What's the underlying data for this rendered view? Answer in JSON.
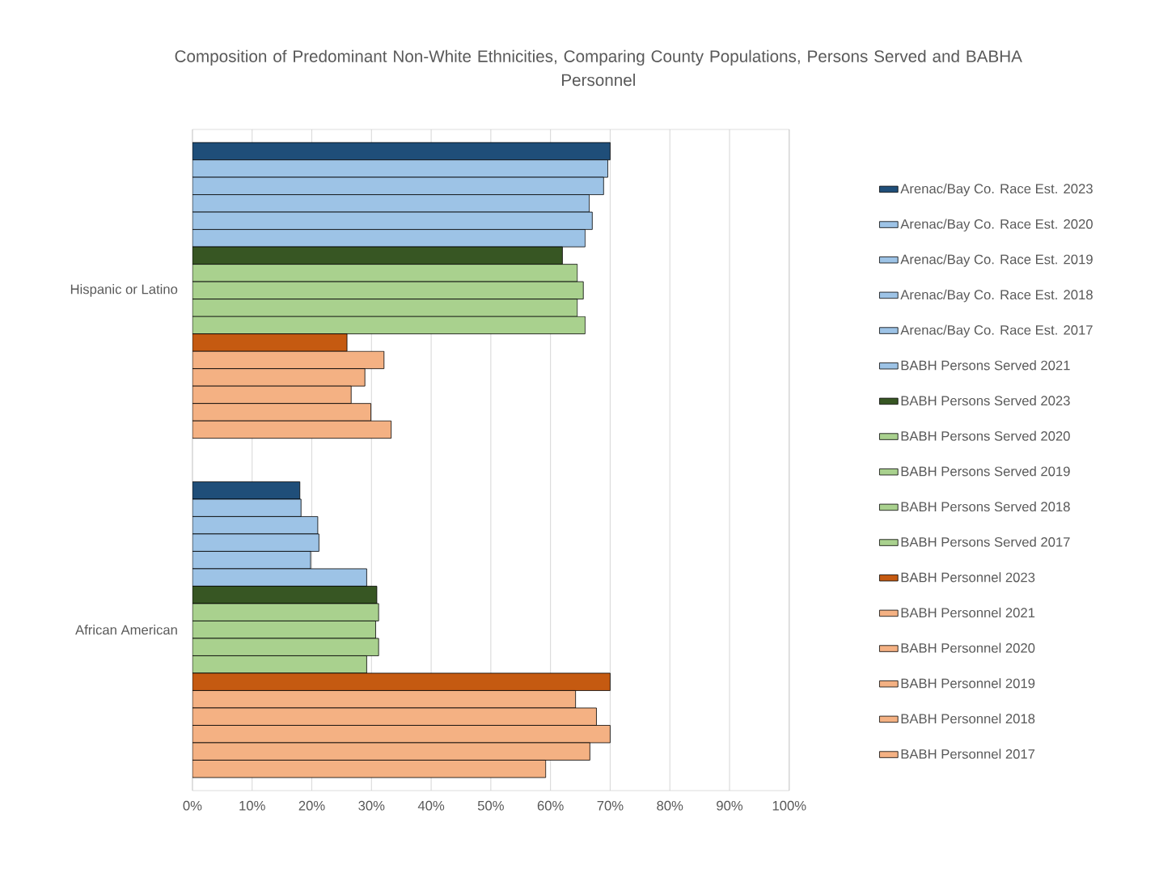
{
  "chart_data": {
    "type": "bar",
    "orientation": "horizontal",
    "title": "Composition of Predominant Non-White Ethnicities, Comparing County Populations, Persons Served and BABHA Personnel",
    "categories": [
      "Hispanic or Latino",
      "African American"
    ],
    "series": [
      {
        "name": "Arenac/Bay Co. Race Est. 2023",
        "color": "#1f4e79",
        "values": [
          70.0,
          18.0
        ]
      },
      {
        "name": "Arenac/Bay Co. Race Est. 2020",
        "color": "#9dc3e6",
        "values": [
          69.6,
          18.2
        ]
      },
      {
        "name": "Arenac/Bay Co. Race Est. 2019",
        "color": "#9dc3e6",
        "values": [
          68.9,
          21.0
        ]
      },
      {
        "name": "Arenac/Bay Co. Race Est. 2018",
        "color": "#9dc3e6",
        "values": [
          66.5,
          21.2
        ]
      },
      {
        "name": "Arenac/Bay Co. Race Est. 2017",
        "color": "#9dc3e6",
        "values": [
          67.0,
          19.8
        ]
      },
      {
        "name": "BABH Persons Served 2021",
        "color": "#9dc3e6",
        "values": [
          65.8,
          29.2
        ]
      },
      {
        "name": "BABH Persons Served 2023",
        "color": "#375623",
        "values": [
          62.0,
          30.9
        ]
      },
      {
        "name": "BABH Persons Served 2020",
        "color": "#a9d18e",
        "values": [
          64.5,
          31.2
        ]
      },
      {
        "name": "BABH Persons Served 2019",
        "color": "#a9d18e",
        "values": [
          65.5,
          30.7
        ]
      },
      {
        "name": "BABH Persons Served 2018",
        "color": "#a9d18e",
        "values": [
          64.5,
          31.2
        ]
      },
      {
        "name": "BABH Persons Served 2017",
        "color": "#a9d18e",
        "values": [
          65.8,
          29.2
        ]
      },
      {
        "name": "BABH Personnel 2023",
        "color": "#c55a11",
        "values": [
          25.9,
          70.0
        ]
      },
      {
        "name": "BABH Personnel 2021",
        "color": "#f4b183",
        "values": [
          32.1,
          64.2
        ]
      },
      {
        "name": "BABH Personnel 2020",
        "color": "#f4b183",
        "values": [
          28.9,
          67.7
        ]
      },
      {
        "name": "BABH Personnel 2019",
        "color": "#f4b183",
        "values": [
          26.6,
          70.0
        ]
      },
      {
        "name": "BABH Personnel 2018",
        "color": "#f4b183",
        "values": [
          29.9,
          66.6
        ]
      },
      {
        "name": "BABH Personnel 2017",
        "color": "#f4b183",
        "values": [
          33.3,
          59.2
        ]
      }
    ],
    "xlim": [
      0,
      100
    ],
    "xticks": [
      {
        "value": 0,
        "label": "0%"
      },
      {
        "value": 10,
        "label": "10%"
      },
      {
        "value": 20,
        "label": "20%"
      },
      {
        "value": 30,
        "label": "30%"
      },
      {
        "value": 40,
        "label": "40%"
      },
      {
        "value": 50,
        "label": "50%"
      },
      {
        "value": 60,
        "label": "60%"
      },
      {
        "value": 70,
        "label": "70%"
      },
      {
        "value": 80,
        "label": "80%"
      },
      {
        "value": 90,
        "label": "90%"
      },
      {
        "value": 100,
        "label": "100%"
      }
    ],
    "grid": "x",
    "legend": "right"
  }
}
